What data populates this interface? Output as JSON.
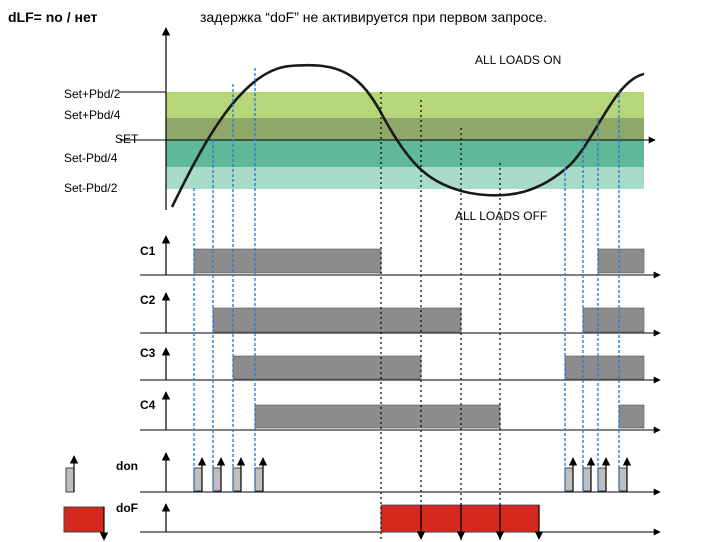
{
  "header": {
    "title": "dLF= no / нет",
    "description": "задержка “doF” не активируется при первом запросе."
  },
  "bands": {
    "labels": [
      "Set+Pbd/2",
      "Set+Pbd/4",
      "SET",
      "Set-Pbd/4",
      "Set-Pbd/2"
    ],
    "colors": [
      "#b5d77a",
      "#8fa86a",
      "#5fb898",
      "#a9dbc9"
    ]
  },
  "annotations": {
    "all_on": "ALL LOADS ON",
    "all_off": "ALL LOADS OFF"
  },
  "rows": {
    "c1": "C1",
    "c2": "C2",
    "c3": "C3",
    "c4": "C4",
    "don": "don",
    "dof": "doF"
  },
  "colors": {
    "bar": "#8c8c8c",
    "dof": "#d6281e",
    "marker": "#2a7fd4"
  }
}
